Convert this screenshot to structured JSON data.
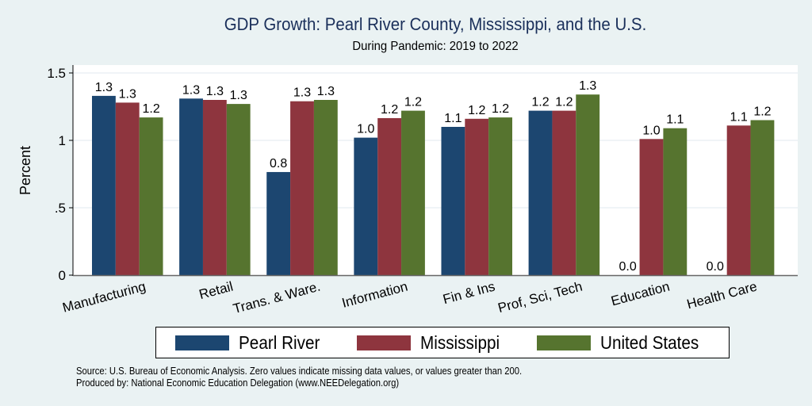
{
  "chart_data": {
    "type": "bar",
    "title": "GDP Growth: Pearl River County, Mississippi, and the U.S.",
    "subtitle": "During Pandemic: 2019 to 2022",
    "xlabel": "",
    "ylabel": "Percent",
    "ylim": [
      0,
      1.6
    ],
    "yticks": [
      0,
      0.5,
      1,
      1.5
    ],
    "ytick_labels": [
      "0",
      ".5",
      "1",
      "1.5"
    ],
    "grid": true,
    "legend_position": "bottom",
    "categories": [
      "Manufacturing",
      "Retail",
      "Trans. & Ware.",
      "Information",
      "Fin & Ins",
      "Prof, Sci, Tech",
      "Education",
      "Health Care"
    ],
    "series": [
      {
        "name": "Pearl River",
        "color": "#1c4670",
        "values": [
          1.33,
          1.31,
          0.765,
          1.02,
          1.1,
          1.22,
          0.0,
          0.0
        ],
        "labels": [
          "1.3",
          "1.3",
          "0.8",
          "1.0",
          "1.1",
          "1.2",
          "0.0",
          "0.0"
        ]
      },
      {
        "name": "Mississippi",
        "color": "#8e353e",
        "values": [
          1.28,
          1.3,
          1.29,
          1.165,
          1.16,
          1.22,
          1.01,
          1.11
        ],
        "labels": [
          "1.3",
          "1.3",
          "1.3",
          "1.2",
          "1.2",
          "1.2",
          "1.0",
          "1.1"
        ]
      },
      {
        "name": "United States",
        "color": "#56742f",
        "values": [
          1.17,
          1.27,
          1.3,
          1.22,
          1.17,
          1.34,
          1.09,
          1.15
        ],
        "labels": [
          "1.2",
          "1.3",
          "1.3",
          "1.2",
          "1.2",
          "1.3",
          "1.1",
          "1.2"
        ]
      }
    ],
    "footer": [
      "Source: U.S. Bureau of Economic Analysis. Zero values indicate missing data values, or values greater than 200.",
      "Produced by: National Economic Education Delegation (www.NEEDelegation.org)"
    ]
  }
}
